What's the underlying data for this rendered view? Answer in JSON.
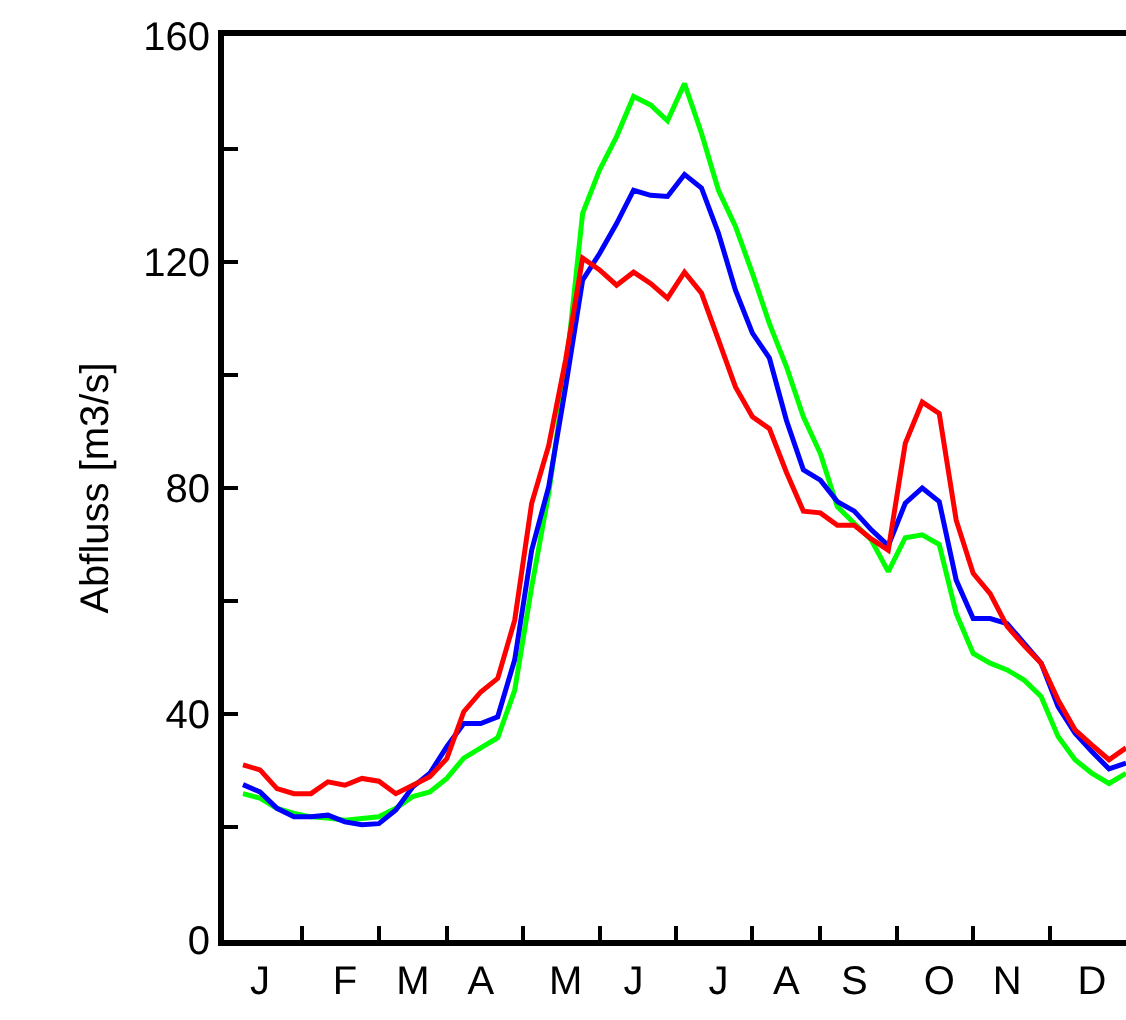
{
  "chart_data": {
    "type": "line",
    "ylabel": "Abfluss [m3/s]",
    "categories": [
      null,
      "J",
      null,
      null,
      null,
      null,
      "F",
      null,
      null,
      null,
      "M",
      null,
      null,
      null,
      "A",
      null,
      null,
      null,
      null,
      "M",
      null,
      null,
      null,
      "J",
      null,
      null,
      null,
      null,
      "J",
      null,
      null,
      null,
      "A",
      null,
      null,
      null,
      "S",
      null,
      null,
      null,
      null,
      "O",
      null,
      null,
      null,
      "N",
      null,
      null,
      null,
      null,
      "D",
      null,
      null
    ],
    "series": [
      {
        "color": "#00ff00",
        "values": [
          25.9,
          25.1,
          23.3,
          22.4,
          21.8,
          21.6,
          21.2,
          21.5,
          21.8,
          23.3,
          25.4,
          26.2,
          28.6,
          32.2,
          34.0,
          35.8,
          44.2,
          62.5,
          79.0,
          100.3,
          128.6,
          136.3,
          142.2,
          149.3,
          147.8,
          145.0,
          151.6,
          142.8,
          132.7,
          126.3,
          118.0,
          109.1,
          101.5,
          92.6,
          86.1,
          76.7,
          73.7,
          70.8,
          65.2,
          71.2,
          71.7,
          70.0,
          57.8,
          50.7,
          49.0,
          47.8,
          46.0,
          43.1,
          36.0,
          31.9,
          29.5,
          27.7,
          29.5
        ]
      },
      {
        "color": "#0000ff",
        "values": [
          27.5,
          26.2,
          23.3,
          21.8,
          21.8,
          22.1,
          20.9,
          20.4,
          20.6,
          23.0,
          27.1,
          29.5,
          34.2,
          38.3,
          38.3,
          39.5,
          49.6,
          69.0,
          80.2,
          97.9,
          116.8,
          121.5,
          126.8,
          132.7,
          131.8,
          131.6,
          135.5,
          133.1,
          125.1,
          115.0,
          107.4,
          103.0,
          92.0,
          83.2,
          81.4,
          77.6,
          75.9,
          72.6,
          69.8,
          77.3,
          80.0,
          77.6,
          63.7,
          56.9,
          56.9,
          56.0,
          52.5,
          49.0,
          41.3,
          36.6,
          33.3,
          30.3,
          31.3
        ]
      },
      {
        "color": "#ff0000",
        "values": [
          31.0,
          30.1,
          26.8,
          25.9,
          25.9,
          28.0,
          27.4,
          28.6,
          28.1,
          25.9,
          27.4,
          28.9,
          32.1,
          40.4,
          43.9,
          46.3,
          56.6,
          77.3,
          87.5,
          102.7,
          120.7,
          118.6,
          115.9,
          118.2,
          116.2,
          113.6,
          118.2,
          114.5,
          106.2,
          97.9,
          92.6,
          90.5,
          82.8,
          75.9,
          75.6,
          73.4,
          73.4,
          71.0,
          69.0,
          87.9,
          95.2,
          93.2,
          74.3,
          64.9,
          61.3,
          55.5,
          52.1,
          49.0,
          42.5,
          37.2,
          34.5,
          31.9,
          34.0
        ]
      }
    ],
    "ylim": [
      0,
      160
    ],
    "yticks": [
      0,
      {
        "value": 20,
        "label": null
      },
      40,
      {
        "value": 60,
        "label": null
      },
      80,
      {
        "value": 100,
        "label": null
      },
      120,
      {
        "value": 140,
        "label": null
      },
      160
    ],
    "marker": "none",
    "line_style": "solid"
  }
}
